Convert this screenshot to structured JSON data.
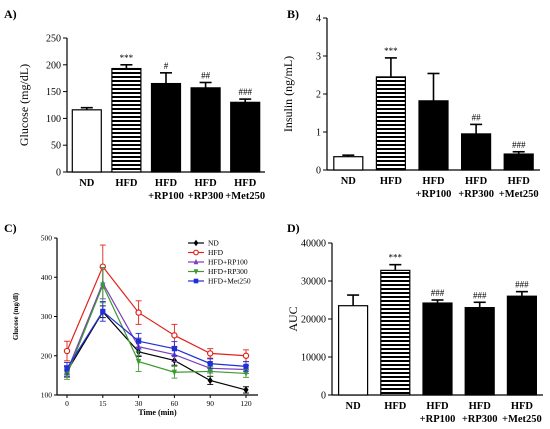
{
  "chart_data": [
    {
      "panel": "A)",
      "type": "bar",
      "ylabel": "Glucose (mg/dL)",
      "ylim": [
        0,
        250
      ],
      "yticks": [
        0,
        50,
        100,
        150,
        200,
        250
      ],
      "categories": [
        "ND",
        "HFD",
        "HFD\n+RP100",
        "HFD\n+RP300",
        "HFD\n+Met250"
      ],
      "values": [
        116,
        193,
        165,
        157,
        130
      ],
      "errors": [
        4,
        7,
        20,
        10,
        6
      ],
      "fills": [
        "white",
        "stripes",
        "black",
        "black",
        "black"
      ],
      "annotations": [
        "",
        "***",
        "#",
        "##",
        "###"
      ]
    },
    {
      "panel": "B)",
      "type": "bar",
      "ylabel": "Insulin (ng/mL)",
      "ylim": [
        0,
        4
      ],
      "yticks": [
        0,
        1,
        2,
        3,
        4
      ],
      "categories": [
        "ND",
        "HFD",
        "HFD\n+RP100",
        "HFD\n+RP300",
        "HFD\n+Met250"
      ],
      "values": [
        0.35,
        2.45,
        1.82,
        0.95,
        0.42
      ],
      "errors": [
        0.04,
        0.5,
        0.72,
        0.25,
        0.06
      ],
      "fills": [
        "white",
        "stripes",
        "black",
        "black",
        "black"
      ],
      "annotations": [
        "",
        "***",
        "",
        "##",
        "###"
      ]
    },
    {
      "panel": "C)",
      "type": "line",
      "xlabel": "Time (min)",
      "ylabel": "Glucose (mg/dl)",
      "x": [
        0,
        15,
        30,
        60,
        90,
        120
      ],
      "xticks": [
        0,
        15,
        30,
        60,
        90,
        120
      ],
      "ylim": [
        100,
        500
      ],
      "yticks": [
        100,
        200,
        300,
        400,
        500
      ],
      "legend_position": "top-right",
      "series": [
        {
          "name": "ND",
          "color": "#000000",
          "marker": "diamond",
          "values": [
            160,
            312,
            210,
            188,
            137,
            113
          ],
          "errors": [
            12,
            15,
            12,
            12,
            10,
            8
          ]
        },
        {
          "name": "HFD",
          "color": "#e0231c",
          "marker": "circle-open",
          "values": [
            212,
            427,
            310,
            252,
            206,
            200
          ],
          "errors": [
            25,
            55,
            30,
            28,
            12,
            15
          ]
        },
        {
          "name": "HFD+RP100",
          "color": "#7b3fbf",
          "marker": "triangle",
          "values": [
            160,
            385,
            223,
            203,
            168,
            165
          ],
          "errors": [
            15,
            40,
            22,
            18,
            12,
            10
          ]
        },
        {
          "name": "HFD+RP300",
          "color": "#3d9a2e",
          "marker": "triangle-down",
          "values": [
            152,
            380,
            185,
            158,
            160,
            155
          ],
          "errors": [
            12,
            45,
            25,
            15,
            12,
            10
          ]
        },
        {
          "name": "HFD+Met250",
          "color": "#1f2fd6",
          "marker": "square",
          "values": [
            168,
            313,
            237,
            218,
            180,
            173
          ],
          "errors": [
            15,
            25,
            20,
            18,
            12,
            12
          ]
        }
      ]
    },
    {
      "panel": "D)",
      "type": "bar",
      "ylabel": "AUC",
      "ylim": [
        0,
        40000
      ],
      "yticks": [
        0,
        10000,
        20000,
        30000,
        40000
      ],
      "categories": [
        "ND",
        "HFD",
        "HFD\n+RP100",
        "HFD\n+RP300",
        "HFD\n+Met250"
      ],
      "values": [
        23500,
        32800,
        24200,
        23000,
        26000
      ],
      "errors": [
        2800,
        1500,
        800,
        1400,
        1200
      ],
      "fills": [
        "white",
        "stripes",
        "black",
        "black",
        "black"
      ],
      "annotations": [
        "",
        "***",
        "###",
        "###",
        "###"
      ]
    }
  ]
}
